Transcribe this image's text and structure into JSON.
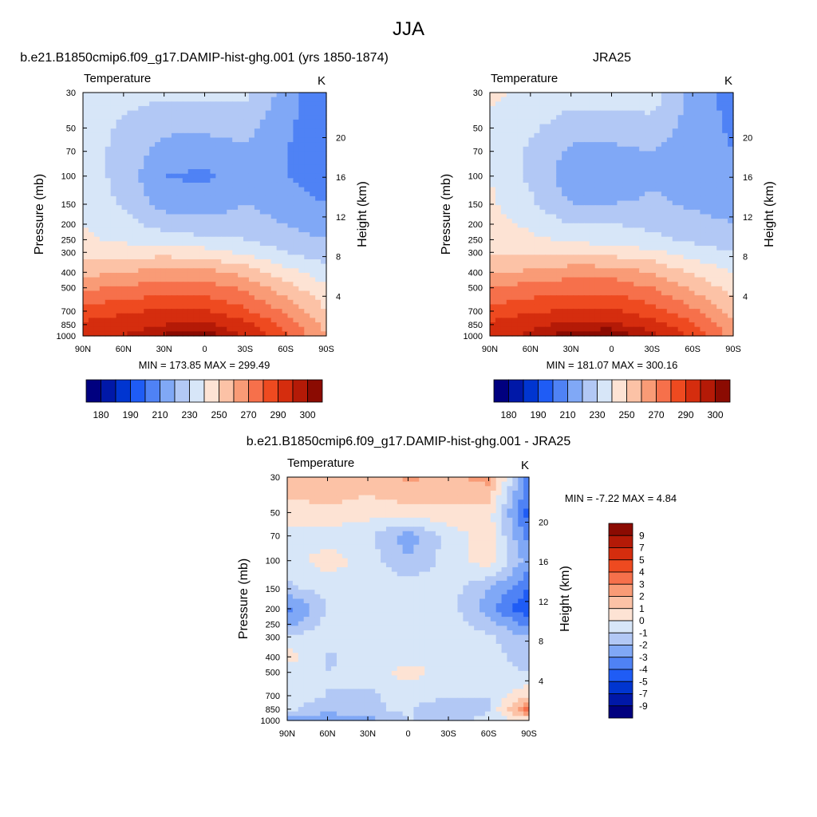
{
  "figure": {
    "main_title": "JJA"
  },
  "panels": [
    {
      "id": "model",
      "title": "b.e21.B1850cmip6.f09_g17.DAMIP-hist-ghg.001 (yrs 1850-1874)",
      "left_label": "Temperature",
      "right_label": "K",
      "stats_text": "MIN = 173.85  MAX = 299.49"
    },
    {
      "id": "obs",
      "title": "JRA25",
      "left_label": "Temperature",
      "right_label": "K",
      "stats_text": "MIN = 181.07  MAX = 300.16"
    },
    {
      "id": "diff",
      "title": "b.e21.B1850cmip6.f09_g17.DAMIP-hist-ghg.001 - JRA25",
      "left_label": "Temperature",
      "right_label": "K",
      "stats_text": "MIN =  -7.22  MAX =   4.84"
    }
  ],
  "axes": {
    "ylabel": "Pressure (mb)",
    "y2label": "Height (km)",
    "x_ticks": [
      "90N",
      "60N",
      "30N",
      "0",
      "30S",
      "60S",
      "90S"
    ],
    "y_ticks": [
      "30",
      "50",
      "70",
      "100",
      "150",
      "200",
      "250",
      "300",
      "400",
      "500",
      "700",
      "850",
      "1000"
    ],
    "y2_ticks": [
      "20",
      "16",
      "12",
      "8",
      "4"
    ]
  },
  "colorbars": {
    "absolute": {
      "tick_labels": [
        "180",
        "190",
        "210",
        "230",
        "250",
        "270",
        "290",
        "300"
      ],
      "colors": [
        "#00007f",
        "#0018a8",
        "#0035d0",
        "#1f5cf5",
        "#4f82f5",
        "#80a8f6",
        "#b2c8f5",
        "#d7e6f8",
        "#fde3d4",
        "#fcc2a6",
        "#f99b76",
        "#f6704b",
        "#ee4a20",
        "#d52d0e",
        "#b41a07",
        "#8b0b02"
      ]
    },
    "difference": {
      "labels": [
        "9",
        "7",
        "5",
        "4",
        "3",
        "2",
        "1",
        "0",
        "-1",
        "-2",
        "-3",
        "-4",
        "-5",
        "-7",
        "-9"
      ],
      "colors": [
        "#8b0b02",
        "#b41a07",
        "#d52d0e",
        "#ee4a20",
        "#f6704b",
        "#f99b76",
        "#fcc2a6",
        "#fde3d4",
        "#d7e6f8",
        "#b2c8f5",
        "#80a8f6",
        "#4f82f5",
        "#1f5cf5",
        "#0035d0",
        "#0018a8",
        "#00007f"
      ]
    }
  },
  "chart_data": [
    {
      "type": "heatmap",
      "title": "b.e21.B1850cmip6.f09_g17.DAMIP-hist-ghg.001 (yrs 1850-1874)",
      "xlabel": "",
      "ylabel": "Pressure (mb)",
      "x_categories": [
        "90N",
        "60N",
        "30N",
        "0",
        "30S",
        "60S",
        "90S"
      ],
      "y_categories": [
        "30",
        "50",
        "70",
        "100",
        "150",
        "200",
        "250",
        "300",
        "400",
        "500",
        "700",
        "850",
        "1000"
      ],
      "values": [
        [
          228,
          224,
          222,
          222,
          223,
          205,
          190
        ],
        [
          226,
          218,
          212,
          212,
          214,
          202,
          192
        ],
        [
          226,
          216,
          206,
          204,
          208,
          200,
          194
        ],
        [
          226,
          216,
          200,
          198,
          206,
          200,
          196
        ],
        [
          228,
          218,
          206,
          204,
          210,
          204,
          200
        ],
        [
          230,
          224,
          216,
          214,
          216,
          210,
          205
        ],
        [
          232,
          228,
          224,
          222,
          220,
          214,
          210
        ],
        [
          236,
          236,
          236,
          234,
          228,
          220,
          214
        ],
        [
          246,
          250,
          254,
          254,
          246,
          234,
          224
        ],
        [
          258,
          262,
          264,
          264,
          258,
          244,
          232
        ],
        [
          274,
          278,
          282,
          282,
          272,
          258,
          240
        ],
        [
          282,
          286,
          290,
          292,
          284,
          266,
          246
        ],
        [
          284,
          290,
          296,
          298,
          290,
          272,
          250
        ]
      ],
      "zlim": [
        173.85,
        299.49
      ]
    },
    {
      "type": "heatmap",
      "title": "JRA25",
      "xlabel": "",
      "ylabel": "Pressure (mb)",
      "x_categories": [
        "90N",
        "60N",
        "30N",
        "0",
        "30S",
        "60S",
        "90S"
      ],
      "y_categories": [
        "30",
        "50",
        "70",
        "100",
        "150",
        "200",
        "250",
        "300",
        "400",
        "500",
        "700",
        "850",
        "1000"
      ],
      "values": [
        [
          232,
          228,
          226,
          226,
          226,
          206,
          196
        ],
        [
          228,
          222,
          214,
          214,
          216,
          206,
          198
        ],
        [
          228,
          218,
          208,
          208,
          210,
          204,
          200
        ],
        [
          230,
          218,
          204,
          200,
          208,
          206,
          202
        ],
        [
          232,
          222,
          210,
          210,
          212,
          208,
          206
        ],
        [
          234,
          228,
          220,
          220,
          218,
          214,
          210
        ],
        [
          236,
          232,
          228,
          226,
          222,
          218,
          214
        ],
        [
          238,
          238,
          238,
          236,
          232,
          226,
          220
        ],
        [
          248,
          252,
          256,
          256,
          250,
          238,
          230
        ],
        [
          260,
          264,
          266,
          266,
          260,
          248,
          236
        ],
        [
          274,
          278,
          282,
          282,
          274,
          262,
          246
        ],
        [
          282,
          288,
          292,
          292,
          286,
          272,
          252
        ],
        [
          286,
          292,
          298,
          300,
          292,
          278,
          256
        ]
      ],
      "zlim": [
        181.07,
        300.16
      ]
    },
    {
      "type": "heatmap",
      "title": "b.e21.B1850cmip6.f09_g17.DAMIP-hist-ghg.001 - JRA25",
      "xlabel": "",
      "ylabel": "Pressure (mb)",
      "x_categories": [
        "90N",
        "60N",
        "30N",
        "0",
        "30S",
        "60S",
        "90S"
      ],
      "y_categories": [
        "30",
        "50",
        "70",
        "100",
        "150",
        "200",
        "250",
        "300",
        "400",
        "500",
        "700",
        "850",
        "1000"
      ],
      "values": [
        [
          1.5,
          1.8,
          1.6,
          2.2,
          1.8,
          2.4,
          -3.5
        ],
        [
          0.6,
          0.8,
          0.4,
          0.6,
          0.8,
          0.5,
          -4.5
        ],
        [
          -0.3,
          -0.5,
          -0.8,
          -2.5,
          -0.6,
          0.6,
          -3.5
        ],
        [
          -0.5,
          0.5,
          -0.4,
          -2.0,
          -0.6,
          0.6,
          -2.5
        ],
        [
          -1.2,
          -0.7,
          -0.4,
          -0.3,
          -0.5,
          -2.0,
          -4.0
        ],
        [
          -3.5,
          -1.0,
          -0.5,
          -0.3,
          -0.5,
          -2.5,
          -5.0
        ],
        [
          -2.5,
          -0.6,
          -0.4,
          -0.3,
          -0.4,
          -1.5,
          -3.5
        ],
        [
          -0.7,
          -0.6,
          -0.4,
          -0.4,
          -0.5,
          -0.8,
          -2.0
        ],
        [
          0.5,
          -1.2,
          -0.5,
          -0.4,
          -0.6,
          -0.6,
          -1.5
        ],
        [
          -0.6,
          -1.0,
          -0.6,
          0.5,
          -0.5,
          -0.8,
          -1.0
        ],
        [
          -0.5,
          -1.0,
          -1.2,
          -0.6,
          -0.8,
          -1.0,
          1.0
        ],
        [
          -0.8,
          -1.5,
          -1.2,
          -0.8,
          -2.0,
          -1.0,
          3.5
        ],
        [
          -2.5,
          -3.0,
          -2.5,
          -1.0,
          -1.2,
          -0.8,
          0.5
        ]
      ],
      "zlim": [
        -7.22,
        4.84
      ]
    }
  ]
}
